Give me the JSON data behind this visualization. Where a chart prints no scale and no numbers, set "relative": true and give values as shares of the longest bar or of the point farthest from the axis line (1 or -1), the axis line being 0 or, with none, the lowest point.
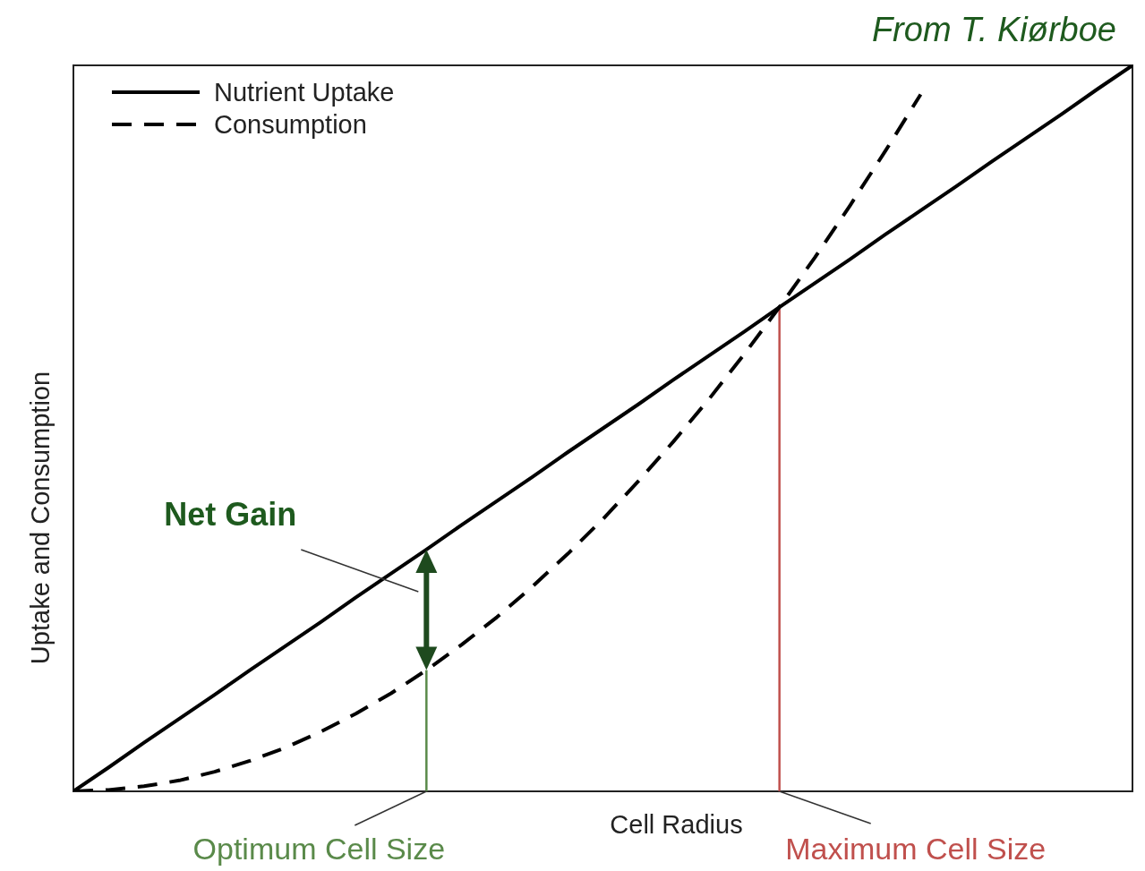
{
  "chart_data": {
    "type": "line",
    "relative": true,
    "xlabel": "Cell Radius",
    "ylabel": "Uptake and Consumption",
    "legend": "top left",
    "categories": [
      null,
      null,
      null,
      null,
      null,
      null,
      null,
      null,
      null,
      null,
      null,
      null,
      null,
      null,
      null,
      null,
      null,
      null,
      null,
      null,
      null,
      null,
      null,
      null,
      null,
      null,
      null,
      null,
      null,
      null,
      null
    ],
    "series": [
      {
        "name": "Nutrient Uptake",
        "color": "#000000",
        "line_style": "solid",
        "values": [
          0,
          0.033,
          0.067,
          0.1,
          0.133,
          0.167,
          0.2,
          0.233,
          0.267,
          0.3,
          0.333,
          0.367,
          0.4,
          0.433,
          0.467,
          0.5,
          0.533,
          0.567,
          0.6,
          0.633,
          0.667,
          0.7,
          0.733,
          0.767,
          0.8,
          0.833,
          0.867,
          0.9,
          0.933,
          0.967,
          1
        ]
      },
      {
        "name": "Consumption",
        "color": "#000000",
        "line_style": "dashed",
        "values": [
          0,
          0.002,
          0.007,
          0.015,
          0.027,
          0.042,
          0.06,
          0.082,
          0.107,
          0.135,
          0.167,
          0.202,
          0.24,
          0.282,
          0.327,
          0.375,
          0.427,
          0.482,
          0.54,
          0.602,
          0.667,
          0.735,
          0.807,
          0.882,
          0.96,
          null,
          null,
          null,
          null,
          null,
          null
        ]
      }
    ],
    "annotations": [
      "Net Gain",
      "Optimum Cell Size",
      "Maximum Cell Size",
      "From T. Kiørboe"
    ]
  }
}
